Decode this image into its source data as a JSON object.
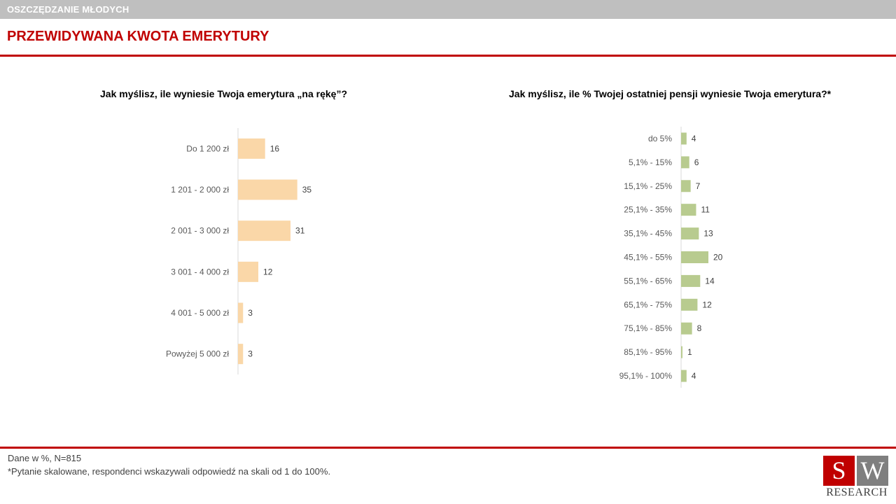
{
  "header": {
    "section": "OSZCZĘDZANIE MŁODYCH",
    "title": "PRZEWIDYWANA KWOTA EMERYTURY"
  },
  "chart_data": [
    {
      "type": "bar",
      "orientation": "horizontal",
      "title": "Jak myślisz, ile wyniesie Twoja emerytura „na rękę”?",
      "categories": [
        "Do 1 200 zł",
        "1 201 - 2 000 zł",
        "2 001 - 3 000 zł",
        "3 001 - 4 000 zł",
        "4 001 - 5 000 zł",
        "Powyżej 5 000 zł"
      ],
      "values": [
        16,
        35,
        31,
        12,
        3,
        3
      ],
      "color": "#fad7a8",
      "grid": false
    },
    {
      "type": "bar",
      "orientation": "horizontal",
      "title": "Jak myślisz, ile % Twojej ostatniej pensji wyniesie Twoja emerytura?*",
      "categories": [
        "do 5%",
        "5,1% - 15%",
        "15,1% - 25%",
        "25,1% - 35%",
        "35,1% - 45%",
        "45,1% - 55%",
        "55,1% - 65%",
        "65,1% - 75%",
        "75,1% - 85%",
        "85,1% - 95%",
        "95,1% - 100%"
      ],
      "values": [
        4,
        6,
        7,
        11,
        13,
        20,
        14,
        12,
        8,
        1,
        4
      ],
      "color": "#b8cb8f",
      "grid": false
    }
  ],
  "footer": {
    "note1": "Dane w %, N=815",
    "note2": "*Pytanie skalowane, respondenci wskazywali odpowiedź na skali od 1 do 100%."
  },
  "logo": {
    "s": "S",
    "w": "W",
    "text": "RESEARCH"
  }
}
